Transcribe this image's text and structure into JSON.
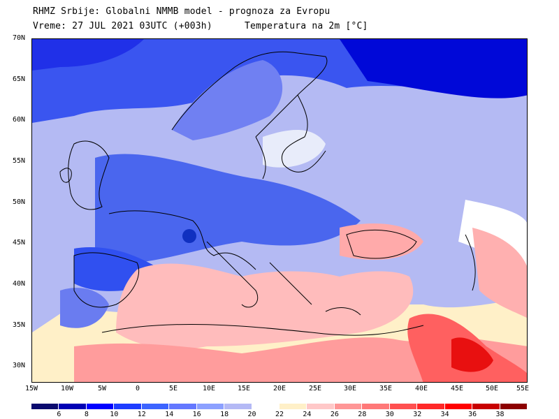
{
  "header": {
    "line1": "RHMZ Srbije: Globalni NMMB model - prognoza za Evropu",
    "line2_time": "Vreme: 27 JUL 2021 03UTC (+003h)",
    "line2_field": "Temperatura na 2m [°C]"
  },
  "axes": {
    "lat_labels": [
      "70N",
      "65N",
      "60N",
      "55N",
      "50N",
      "45N",
      "40N",
      "35N",
      "30N"
    ],
    "lon_labels": [
      "15W",
      "10W",
      "5W",
      "0",
      "5E",
      "10E",
      "15E",
      "20E",
      "25E",
      "30E",
      "35E",
      "40E",
      "45E",
      "50E",
      "55E"
    ]
  },
  "colorbar": {
    "labels": [
      "6",
      "8",
      "10",
      "12",
      "14",
      "16",
      "18",
      "20",
      "22",
      "24",
      "26",
      "28",
      "30",
      "32",
      "34",
      "36",
      "38"
    ],
    "colors": [
      "#0a0a6e",
      "#0000b4",
      "#0000ff",
      "#1e3cff",
      "#3c64ff",
      "#6478ff",
      "#8ca0ff",
      "#b4b9f5",
      "#ffffff",
      "#fff0c8",
      "#ffc8c8",
      "#ff9696",
      "#ff7878",
      "#ff5050",
      "#ff2828",
      "#ff0000",
      "#c80000",
      "#8c0000"
    ]
  },
  "palette": {
    "land_border": "#000000",
    "deep_blue": "#0000d8",
    "cold_blue": "#2a44ee",
    "mid_blue": "#5a70f0",
    "light_blue": "#9aa8f4",
    "pale_blue": "#c0c6f4",
    "cream": "#fff4cc",
    "pink": "#ffc0c0",
    "salmon": "#ff9a9a",
    "red": "#ff5a5a",
    "hot": "#e01010"
  }
}
